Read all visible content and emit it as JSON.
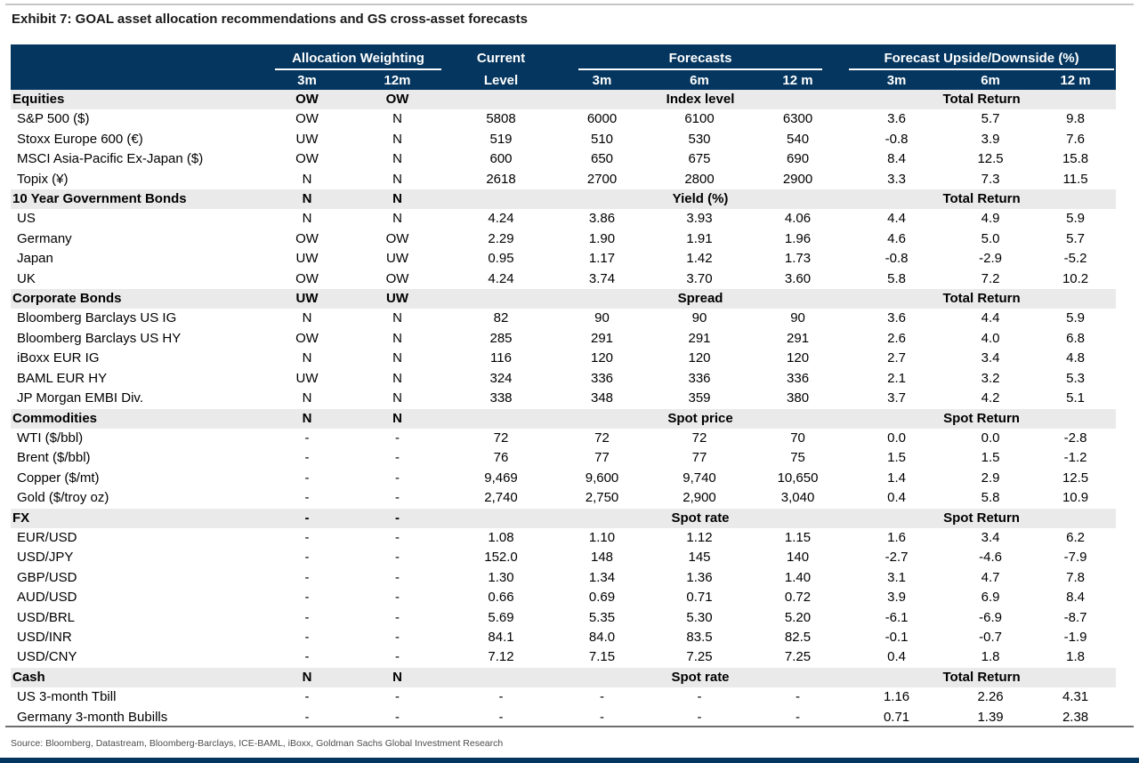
{
  "colors": {
    "navy": "#05365F",
    "section_bg": "#EAEAEA"
  },
  "chart_data": {
    "type": "table",
    "title": "Exhibit 7: GOAL asset allocation recommendations and GS cross-asset forecasts",
    "source": "Source: Bloomberg, Datastream, Bloomberg-Barclays, ICE-BAML, iBoxx, Goldman Sachs Global Investment Research",
    "header": {
      "allocation_group": "Allocation Weighting",
      "current_line1": "Current",
      "current_line2": "Level",
      "forecasts_group": "Forecasts",
      "upside_group": "Forecast Upside/Downside (%)",
      "alloc_sub": [
        "3m",
        "12m"
      ],
      "forecast_sub": [
        "3m",
        "6m",
        "12 m"
      ],
      "upside_sub": [
        "3m",
        "6m",
        "12 m"
      ]
    },
    "sections": [
      {
        "name": "Equities",
        "alloc": [
          "OW",
          "OW"
        ],
        "forecast_label": "Index level",
        "return_label": "Total Return",
        "rows": [
          {
            "name": "S&P 500 ($)",
            "values": [
              "OW",
              "N",
              "5808",
              "6000",
              "6100",
              "6300",
              "3.6",
              "5.7",
              "9.8"
            ]
          },
          {
            "name": "Stoxx Europe 600 (€)",
            "values": [
              "UW",
              "N",
              "519",
              "510",
              "530",
              "540",
              "-0.8",
              "3.9",
              "7.6"
            ]
          },
          {
            "name": "MSCI Asia-Pacific Ex-Japan ($)",
            "values": [
              "OW",
              "N",
              "600",
              "650",
              "675",
              "690",
              "8.4",
              "12.5",
              "15.8"
            ]
          },
          {
            "name": "Topix (¥)",
            "values": [
              "N",
              "N",
              "2618",
              "2700",
              "2800",
              "2900",
              "3.3",
              "7.3",
              "11.5"
            ]
          }
        ]
      },
      {
        "name": "10 Year Government Bonds",
        "alloc": [
          "N",
          "N"
        ],
        "forecast_label": "Yield (%)",
        "return_label": "Total Return",
        "rows": [
          {
            "name": "US",
            "values": [
              "N",
              "N",
              "4.24",
              "3.86",
              "3.93",
              "4.06",
              "4.4",
              "4.9",
              "5.9"
            ]
          },
          {
            "name": "Germany",
            "values": [
              "OW",
              "OW",
              "2.29",
              "1.90",
              "1.91",
              "1.96",
              "4.6",
              "5.0",
              "5.7"
            ]
          },
          {
            "name": "Japan",
            "values": [
              "UW",
              "UW",
              "0.95",
              "1.17",
              "1.42",
              "1.73",
              "-0.8",
              "-2.9",
              "-5.2"
            ]
          },
          {
            "name": "UK",
            "values": [
              "OW",
              "OW",
              "4.24",
              "3.74",
              "3.70",
              "3.60",
              "5.8",
              "7.2",
              "10.2"
            ]
          }
        ]
      },
      {
        "name": "Corporate Bonds",
        "alloc": [
          "UW",
          "UW"
        ],
        "forecast_label": "Spread",
        "return_label": "Total Return",
        "rows": [
          {
            "name": "Bloomberg Barclays US IG",
            "values": [
              "N",
              "N",
              "82",
              "90",
              "90",
              "90",
              "3.6",
              "4.4",
              "5.9"
            ]
          },
          {
            "name": "Bloomberg Barclays US HY",
            "values": [
              "OW",
              "N",
              "285",
              "291",
              "291",
              "291",
              "2.6",
              "4.0",
              "6.8"
            ]
          },
          {
            "name": "iBoxx EUR IG",
            "values": [
              "N",
              "N",
              "116",
              "120",
              "120",
              "120",
              "2.7",
              "3.4",
              "4.8"
            ]
          },
          {
            "name": "BAML EUR HY",
            "values": [
              "UW",
              "N",
              "324",
              "336",
              "336",
              "336",
              "2.1",
              "3.2",
              "5.3"
            ]
          },
          {
            "name": "JP Morgan EMBI Div.",
            "values": [
              "N",
              "N",
              "338",
              "348",
              "359",
              "380",
              "3.7",
              "4.2",
              "5.1"
            ]
          }
        ]
      },
      {
        "name": "Commodities",
        "alloc": [
          "N",
          "N"
        ],
        "forecast_label": "Spot price",
        "return_label": "Spot Return",
        "rows": [
          {
            "name": "WTI  ($/bbl)",
            "values": [
              "-",
              "-",
              "72",
              "72",
              "72",
              "70",
              "0.0",
              "0.0",
              "-2.8"
            ]
          },
          {
            "name": "Brent ($/bbl)",
            "values": [
              "-",
              "-",
              "76",
              "77",
              "77",
              "75",
              "1.5",
              "1.5",
              "-1.2"
            ]
          },
          {
            "name": "Copper ($/mt)",
            "values": [
              "-",
              "-",
              "9,469",
              "9,600",
              "9,740",
              "10,650",
              "1.4",
              "2.9",
              "12.5"
            ]
          },
          {
            "name": "Gold ($/troy oz)",
            "values": [
              "-",
              "-",
              "2,740",
              "2,750",
              "2,900",
              "3,040",
              "0.4",
              "5.8",
              "10.9"
            ]
          }
        ]
      },
      {
        "name": "FX",
        "alloc": [
          "-",
          "-"
        ],
        "forecast_label": "Spot rate",
        "return_label": "Spot Return",
        "rows": [
          {
            "name": "EUR/USD",
            "values": [
              "-",
              "-",
              "1.08",
              "1.10",
              "1.12",
              "1.15",
              "1.6",
              "3.4",
              "6.2"
            ]
          },
          {
            "name": "USD/JPY",
            "values": [
              "-",
              "-",
              "152.0",
              "148",
              "145",
              "140",
              "-2.7",
              "-4.6",
              "-7.9"
            ]
          },
          {
            "name": "GBP/USD",
            "values": [
              "-",
              "-",
              "1.30",
              "1.34",
              "1.36",
              "1.40",
              "3.1",
              "4.7",
              "7.8"
            ]
          },
          {
            "name": "AUD/USD",
            "values": [
              "-",
              "-",
              "0.66",
              "0.69",
              "0.71",
              "0.72",
              "3.9",
              "6.9",
              "8.4"
            ]
          },
          {
            "name": "USD/BRL",
            "values": [
              "-",
              "-",
              "5.69",
              "5.35",
              "5.30",
              "5.20",
              "-6.1",
              "-6.9",
              "-8.7"
            ]
          },
          {
            "name": "USD/INR",
            "values": [
              "-",
              "-",
              "84.1",
              "84.0",
              "83.5",
              "82.5",
              "-0.1",
              "-0.7",
              "-1.9"
            ]
          },
          {
            "name": "USD/CNY",
            "values": [
              "-",
              "-",
              "7.12",
              "7.15",
              "7.25",
              "7.25",
              "0.4",
              "1.8",
              "1.8"
            ]
          }
        ]
      },
      {
        "name": "Cash",
        "alloc": [
          "N",
          "N"
        ],
        "forecast_label": "Spot rate",
        "return_label": "Total Return",
        "rows": [
          {
            "name": "US 3-month Tbill",
            "values": [
              "-",
              "-",
              "-",
              "-",
              "-",
              "-",
              "1.16",
              "2.26",
              "4.31"
            ]
          },
          {
            "name": "Germany 3-month Bubills",
            "values": [
              "-",
              "-",
              "-",
              "-",
              "-",
              "-",
              "0.71",
              "1.39",
              "2.38"
            ]
          }
        ]
      }
    ]
  }
}
